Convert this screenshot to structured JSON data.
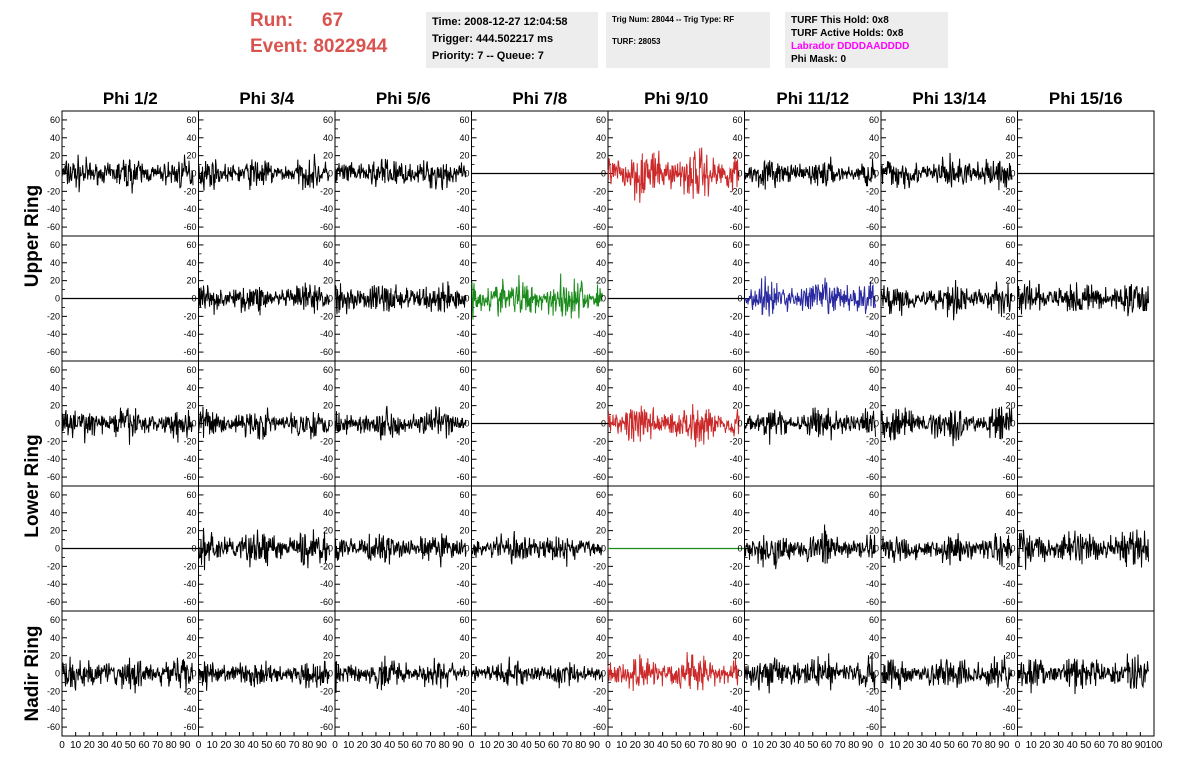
{
  "run": {
    "run_label": "Run:",
    "run_value": "67",
    "event_label": "Event:",
    "event_value": "8022944"
  },
  "info_time": {
    "time": "Time: 2008-12-27 12:04:58",
    "trigger": "Trigger: 444.502217 ms",
    "priority": "Priority: 7 -- Queue: 7"
  },
  "info_trig": {
    "trig": "Trig Num: 28044 -- Trig Type: RF",
    "turf": "TURF: 28053"
  },
  "info_turf": {
    "hold": "TURF This Hold: 0x8",
    "active": "TURF Active Holds: 0x8",
    "labrador": "Labrador DDDDAADDDD",
    "mask": "Phi Mask: 0"
  },
  "colors": {
    "black": "#000000",
    "red": "#cc2a2a",
    "green": "#1a8a1a",
    "blue": "#2a2aa0",
    "magenta": "#ff00ff",
    "run_text": "#d9534f"
  },
  "chart_data": {
    "type": "line",
    "columns": [
      "Phi 1/2",
      "Phi 3/4",
      "Phi 5/6",
      "Phi 7/8",
      "Phi 9/10",
      "Phi 11/12",
      "Phi 13/14",
      "Phi 15/16"
    ],
    "ring_labels": [
      {
        "text": "Upper Ring",
        "rows": [
          0,
          1
        ]
      },
      {
        "text": "Lower Ring",
        "rows": [
          2,
          3
        ]
      },
      {
        "text": "Nadir Ring",
        "rows": [
          4,
          4
        ]
      }
    ],
    "xlim": [
      0,
      100
    ],
    "ylim": [
      -70,
      70
    ],
    "yticks": [
      -60,
      -40,
      -20,
      0,
      20,
      40,
      60
    ],
    "xticks": [
      0,
      10,
      20,
      30,
      40,
      50,
      60,
      70,
      80,
      90,
      100
    ],
    "panels": [
      [
        {
          "c": "black",
          "a": 16
        },
        {
          "c": "black",
          "a": 15
        },
        {
          "c": "black",
          "a": 16
        },
        {
          "c": "black",
          "a": 0
        },
        {
          "c": "red",
          "a": 26
        },
        {
          "c": "black",
          "a": 14
        },
        {
          "c": "black",
          "a": 17
        },
        {
          "c": "black",
          "a": 0
        }
      ],
      [
        {
          "c": "black",
          "a": 0
        },
        {
          "c": "black",
          "a": 15
        },
        {
          "c": "black",
          "a": 17
        },
        {
          "c": "green",
          "a": 22
        },
        {
          "c": "black",
          "a": 0
        },
        {
          "c": "blue",
          "a": 20
        },
        {
          "c": "black",
          "a": 16
        },
        {
          "c": "black",
          "a": 17
        }
      ],
      [
        {
          "c": "black",
          "a": 16
        },
        {
          "c": "black",
          "a": 15
        },
        {
          "c": "black",
          "a": 15
        },
        {
          "c": "black",
          "a": 0
        },
        {
          "c": "red",
          "a": 20
        },
        {
          "c": "black",
          "a": 15
        },
        {
          "c": "black",
          "a": 17
        },
        {
          "c": "black",
          "a": 0
        }
      ],
      [
        {
          "c": "black",
          "a": 0
        },
        {
          "c": "black",
          "a": 18
        },
        {
          "c": "black",
          "a": 15
        },
        {
          "c": "black",
          "a": 15
        },
        {
          "c": "green",
          "a": 0
        },
        {
          "c": "black",
          "a": 17
        },
        {
          "c": "black",
          "a": 16
        },
        {
          "c": "black",
          "a": 19
        }
      ],
      [
        {
          "c": "black",
          "a": 17
        },
        {
          "c": "black",
          "a": 13
        },
        {
          "c": "black",
          "a": 15
        },
        {
          "c": "black",
          "a": 12
        },
        {
          "c": "red",
          "a": 18
        },
        {
          "c": "black",
          "a": 18
        },
        {
          "c": "black",
          "a": 17
        },
        {
          "c": "black",
          "a": 18
        }
      ]
    ]
  }
}
